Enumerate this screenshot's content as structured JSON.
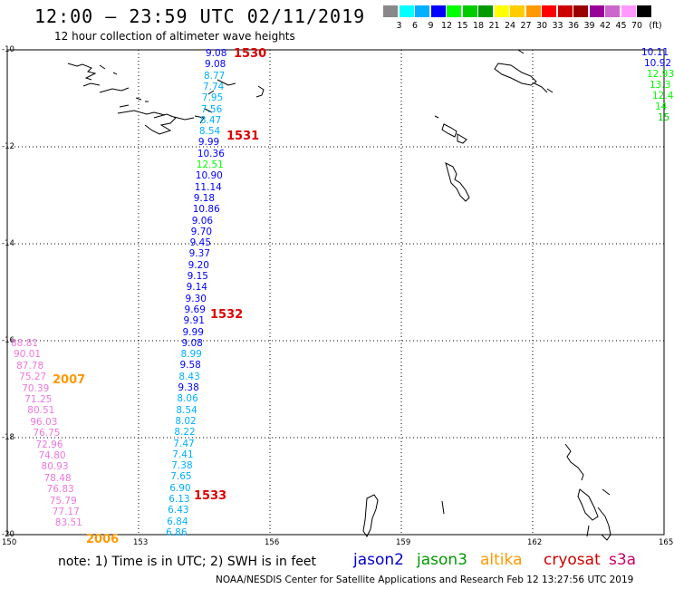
{
  "title": "12:00 – 23:59 UTC 02/11/2019",
  "subtitle": "12 hour collection of altimeter wave heights",
  "note": "note: 1) Time is in UTC; 2) SWH is in feet",
  "credit": "NOAA/NESDIS Center for Satellite Applications and Research   Feb 12 13:27:56 UTC 2019",
  "legend": {
    "unit": "(ft)",
    "bins": [
      {
        "label": "3",
        "color": "#888888"
      },
      {
        "label": "6",
        "color": "#00ffff"
      },
      {
        "label": "9",
        "color": "#00b0ff"
      },
      {
        "label": "12",
        "color": "#0000ff"
      },
      {
        "label": "15",
        "color": "#00ff00"
      },
      {
        "label": "18",
        "color": "#00cc00"
      },
      {
        "label": "21",
        "color": "#009900"
      },
      {
        "label": "24",
        "color": "#ffff00"
      },
      {
        "label": "27",
        "color": "#ffcc00"
      },
      {
        "label": "30",
        "color": "#ff9900"
      },
      {
        "label": "33",
        "color": "#ff0000"
      },
      {
        "label": "36",
        "color": "#cc0000"
      },
      {
        "label": "39",
        "color": "#990000"
      },
      {
        "label": "42",
        "color": "#990099"
      },
      {
        "label": "45",
        "color": "#cc66cc"
      },
      {
        "label": "70",
        "color": "#ff99ff"
      },
      {
        "label": "",
        "color": "#000000"
      }
    ]
  },
  "satellites": [
    {
      "name": "jason2",
      "color": "#0000cc"
    },
    {
      "name": "jason3",
      "color": "#009900"
    },
    {
      "name": "altika",
      "color": "#ff9900"
    },
    {
      "name": "cryosat",
      "color": "#cc0000"
    },
    {
      "name": "s3a",
      "color": "#cc0066"
    }
  ],
  "axes": {
    "lat_labels": [
      "-10",
      "-12",
      "-14",
      "-16",
      "-18",
      "-20"
    ],
    "lon_labels": [
      "150",
      "153",
      "156",
      "159",
      "162",
      "165"
    ]
  },
  "time_labels": [
    {
      "text": "1530",
      "color": "#dd0000"
    },
    {
      "text": "1531",
      "color": "#dd0000"
    },
    {
      "text": "1532",
      "color": "#dd0000"
    },
    {
      "text": "1533",
      "color": "#dd0000"
    },
    {
      "text": "2007",
      "color": "#ff9900"
    },
    {
      "text": "2006",
      "color": "#ff9900"
    }
  ],
  "track_values": [
    {
      "v": "9.08",
      "c": "#0000ff"
    },
    {
      "v": "9.08",
      "c": "#0000ff"
    },
    {
      "v": "8.77",
      "c": "#00b0ff"
    },
    {
      "v": "7.74",
      "c": "#00b0ff"
    },
    {
      "v": "7.95",
      "c": "#00b0ff"
    },
    {
      "v": "7.56",
      "c": "#00b0ff"
    },
    {
      "v": "8.47",
      "c": "#00b0ff"
    },
    {
      "v": "8.54",
      "c": "#00b0ff"
    },
    {
      "v": "9.99",
      "c": "#0000ff"
    },
    {
      "v": "10.36",
      "c": "#0000ff"
    },
    {
      "v": "12.51",
      "c": "#00ff00"
    },
    {
      "v": "10.90",
      "c": "#0000ff"
    },
    {
      "v": "11.14",
      "c": "#0000ff"
    },
    {
      "v": "9.18",
      "c": "#0000ff"
    },
    {
      "v": "10.86",
      "c": "#0000ff"
    },
    {
      "v": "9.06",
      "c": "#0000ff"
    },
    {
      "v": "9.70",
      "c": "#0000ff"
    },
    {
      "v": "9.45",
      "c": "#0000ff"
    },
    {
      "v": "9.37",
      "c": "#0000ff"
    },
    {
      "v": "9.20",
      "c": "#0000ff"
    },
    {
      "v": "9.15",
      "c": "#0000ff"
    },
    {
      "v": "9.14",
      "c": "#0000ff"
    },
    {
      "v": "9.30",
      "c": "#0000ff"
    },
    {
      "v": "9.69",
      "c": "#0000ff"
    },
    {
      "v": "9.91",
      "c": "#0000ff"
    },
    {
      "v": "9.99",
      "c": "#0000ff"
    },
    {
      "v": "9.08",
      "c": "#0000ff"
    },
    {
      "v": "8.99",
      "c": "#00b0ff"
    },
    {
      "v": "9.58",
      "c": "#0000ff"
    },
    {
      "v": "8.43",
      "c": "#00b0ff"
    },
    {
      "v": "9.38",
      "c": "#0000ff"
    },
    {
      "v": "8.06",
      "c": "#00b0ff"
    },
    {
      "v": "8.54",
      "c": "#00b0ff"
    },
    {
      "v": "8.02",
      "c": "#00b0ff"
    },
    {
      "v": "8.22",
      "c": "#00b0ff"
    },
    {
      "v": "7.47",
      "c": "#00b0ff"
    },
    {
      "v": "7.41",
      "c": "#00b0ff"
    },
    {
      "v": "7.38",
      "c": "#00b0ff"
    },
    {
      "v": "7.65",
      "c": "#00b0ff"
    },
    {
      "v": "6.90",
      "c": "#00b0ff"
    },
    {
      "v": "6.13",
      "c": "#00b0ff"
    },
    {
      "v": "6.43",
      "c": "#00b0ff"
    },
    {
      "v": "6.84",
      "c": "#00b0ff"
    },
    {
      "v": "6.86",
      "c": "#00b0ff"
    }
  ],
  "pink_values": [
    "88.81",
    "90.01",
    "87.78",
    "75.27",
    "70.39",
    "71.25",
    "80.51",
    "96.03",
    "76.75",
    "72.96",
    "74.80",
    "80.93",
    "78.48",
    "76.83",
    "75.79",
    "77.17",
    "83.51"
  ],
  "right_values": [
    {
      "v": "10.11",
      "c": "#0000ff"
    },
    {
      "v": "10.92",
      "c": "#0000ff"
    },
    {
      "v": "12.93",
      "c": "#00ff00"
    },
    {
      "v": "13.3",
      "c": "#00ff00"
    },
    {
      "v": "12.4",
      "c": "#00ff00"
    },
    {
      "v": "14",
      "c": "#00ff00"
    },
    {
      "v": "15",
      "c": "#00cc00"
    }
  ]
}
